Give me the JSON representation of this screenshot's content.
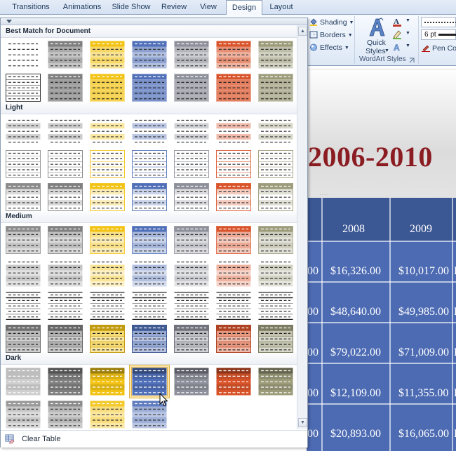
{
  "ribbon": {
    "tabs": [
      {
        "label": "Transitions",
        "active": false
      },
      {
        "label": "Animations",
        "active": false
      },
      {
        "label": "Slide Show",
        "active": false
      },
      {
        "label": "Review",
        "active": false
      },
      {
        "label": "View",
        "active": false
      },
      {
        "label": "Design",
        "active": true
      },
      {
        "label": "Layout",
        "active": false
      }
    ],
    "shading_label": "Shading",
    "borders_label": "Borders",
    "effects_label": "Effects",
    "quick_styles_label_1": "Quick",
    "quick_styles_label_2": "Styles",
    "wordart_group_label": "WordArt Styles",
    "pen_weight_value": "6 pt",
    "pen_color_label": "Pen Col",
    "icons": {
      "shading": "paint-bucket-icon",
      "borders": "borders-icon",
      "effects": "effects-icon",
      "quick_styles": "wordart-a-icon",
      "text_fill": "text-fill-icon",
      "text_outline": "text-outline-icon",
      "text_effects": "text-effects-icon",
      "pen_color": "pen-icon",
      "dialog_launcher": "dialog-launcher-icon"
    }
  },
  "gallery": {
    "sections": [
      {
        "title": "Best Match for Document"
      },
      {
        "title": "Light"
      },
      {
        "title": "Medium"
      },
      {
        "title": "Dark"
      }
    ],
    "clear_table_label": "Clear Table",
    "theme_colors": [
      "#ffffff",
      "#7f7f7f",
      "#f2c314",
      "#4f6fb8",
      "#8d8f9a",
      "#d9532a",
      "#9c9b7a"
    ],
    "selected_style": "Dark style 1 - accent 3 (blue)"
  },
  "slide": {
    "title": "2006-2010",
    "table": {
      "headers": [
        "2008",
        "2009"
      ],
      "rows": [
        [
          "00",
          "$16,326.00",
          "$10,017.00"
        ],
        [
          "00",
          "$48,640.00",
          "$49,985.00"
        ],
        [
          "00",
          "$79,022.00",
          "$71,009.00"
        ],
        [
          "00",
          "$12,109.00",
          "$11,355.00"
        ],
        [
          "00",
          "$20,893.00",
          "$16,065.00"
        ]
      ],
      "trailing_cells": [
        "D",
        "D",
        "D",
        "D",
        "D"
      ]
    },
    "colors": {
      "title": "#8a1c22",
      "table_header": "#3b5794",
      "table_body": "#4d6bb3"
    }
  }
}
